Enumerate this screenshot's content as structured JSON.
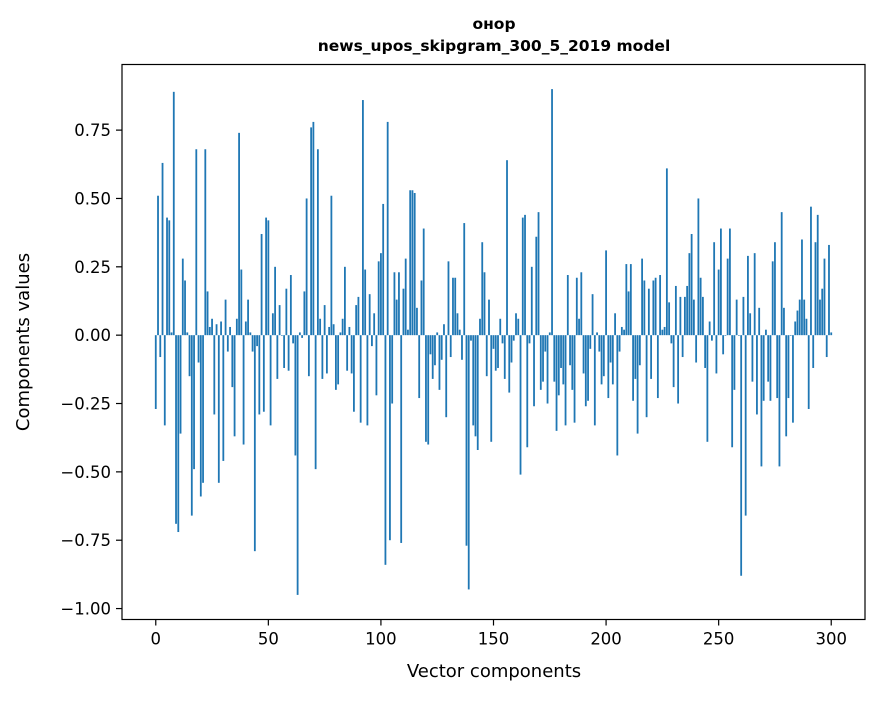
{
  "chart_data": {
    "type": "bar",
    "title_line1": "онор",
    "title_line2": "news_upos_skipgram_300_5_2019 model",
    "xlabel": "Vector components",
    "ylabel": "Components values",
    "xlim": [
      -15,
      315
    ],
    "ylim": [
      -1.04,
      0.99
    ],
    "xticks": [
      0,
      50,
      100,
      150,
      200,
      250,
      300
    ],
    "xtick_labels": [
      "0",
      "50",
      "100",
      "150",
      "200",
      "250",
      "300"
    ],
    "yticks": [
      -1.0,
      -0.75,
      -0.5,
      -0.25,
      0.0,
      0.25,
      0.5,
      0.75
    ],
    "ytick_labels": [
      "−1.00",
      "−0.75",
      "−0.50",
      "−0.25",
      "0.00",
      "0.25",
      "0.50",
      "0.75"
    ],
    "bar_color": "#1f77b4",
    "values": [
      -0.27,
      0.51,
      -0.08,
      0.63,
      -0.33,
      0.43,
      0.42,
      0.01,
      0.89,
      -0.69,
      -0.72,
      -0.36,
      0.28,
      0.2,
      0.01,
      -0.15,
      -0.66,
      -0.49,
      0.68,
      -0.1,
      -0.59,
      -0.54,
      0.68,
      0.16,
      0.03,
      0.06,
      -0.29,
      0.04,
      -0.54,
      0.05,
      -0.46,
      0.13,
      -0.06,
      0.03,
      -0.19,
      -0.37,
      0.06,
      0.74,
      0.24,
      -0.4,
      0.05,
      0.13,
      0.01,
      -0.06,
      -0.79,
      -0.04,
      -0.29,
      0.37,
      -0.28,
      0.43,
      0.42,
      -0.33,
      0.08,
      0.25,
      -0.16,
      0.11,
      0.0,
      -0.12,
      0.17,
      -0.13,
      0.22,
      -0.03,
      -0.44,
      -0.95,
      0.01,
      -0.01,
      0.16,
      0.5,
      -0.15,
      0.76,
      0.78,
      -0.49,
      0.68,
      0.06,
      -0.16,
      0.11,
      -0.14,
      0.03,
      0.51,
      0.04,
      -0.2,
      -0.18,
      0.01,
      0.06,
      0.25,
      -0.13,
      0.03,
      -0.14,
      -0.28,
      0.11,
      0.14,
      -0.32,
      0.86,
      0.24,
      -0.33,
      0.15,
      -0.04,
      0.08,
      -0.22,
      0.27,
      0.3,
      0.48,
      -0.84,
      0.78,
      -0.75,
      -0.25,
      0.23,
      0.13,
      0.23,
      -0.76,
      0.17,
      0.28,
      0.02,
      0.53,
      0.53,
      0.52,
      0.1,
      -0.23,
      0.2,
      0.39,
      -0.39,
      -0.4,
      -0.07,
      -0.16,
      -0.11,
      0.01,
      -0.2,
      -0.09,
      0.04,
      -0.3,
      0.27,
      -0.08,
      0.21,
      0.21,
      0.08,
      0.02,
      -0.09,
      0.41,
      -0.77,
      -0.93,
      -0.02,
      -0.33,
      -0.37,
      -0.42,
      0.06,
      0.34,
      0.23,
      -0.15,
      0.13,
      -0.39,
      -0.05,
      -0.13,
      -0.12,
      0.06,
      -0.03,
      -0.16,
      0.64,
      -0.21,
      -0.1,
      -0.02,
      0.08,
      0.06,
      -0.51,
      0.43,
      0.44,
      -0.41,
      -0.03,
      0.25,
      -0.26,
      0.36,
      0.45,
      -0.2,
      -0.17,
      -0.06,
      -0.25,
      0.01,
      0.9,
      -0.17,
      -0.35,
      -0.22,
      -0.12,
      -0.18,
      -0.33,
      0.22,
      -0.11,
      -0.2,
      -0.32,
      0.21,
      0.06,
      0.23,
      -0.14,
      -0.26,
      -0.24,
      -0.05,
      0.15,
      -0.33,
      0.01,
      -0.06,
      -0.18,
      -0.15,
      0.31,
      -0.23,
      -0.1,
      -0.18,
      0.08,
      -0.44,
      -0.06,
      0.03,
      0.02,
      0.26,
      0.16,
      0.26,
      -0.24,
      -0.16,
      -0.36,
      -0.11,
      0.28,
      0.2,
      -0.3,
      0.17,
      -0.16,
      0.2,
      0.21,
      -0.23,
      0.22,
      0.02,
      0.03,
      0.61,
      0.12,
      -0.03,
      -0.19,
      0.18,
      -0.25,
      0.14,
      -0.08,
      0.14,
      0.18,
      0.3,
      0.37,
      0.13,
      -0.1,
      0.5,
      0.21,
      0.14,
      -0.12,
      -0.39,
      0.05,
      -0.02,
      0.34,
      -0.14,
      0.24,
      0.39,
      -0.07,
      0.0,
      0.28,
      0.39,
      -0.41,
      -0.2,
      0.13,
      0.0,
      -0.88,
      0.14,
      -0.66,
      0.29,
      0.08,
      -0.17,
      0.3,
      -0.29,
      0.1,
      -0.48,
      -0.24,
      0.02,
      -0.17,
      -0.24,
      0.27,
      0.34,
      -0.23,
      -0.48,
      0.45,
      0.1,
      -0.37,
      -0.23,
      0.0,
      -0.32,
      0.05,
      0.09,
      0.13,
      0.35,
      0.13,
      0.06,
      -0.27,
      0.47,
      -0.12,
      0.34,
      0.44,
      0.13,
      0.17,
      0.28,
      -0.08,
      0.33,
      0.01
    ]
  }
}
